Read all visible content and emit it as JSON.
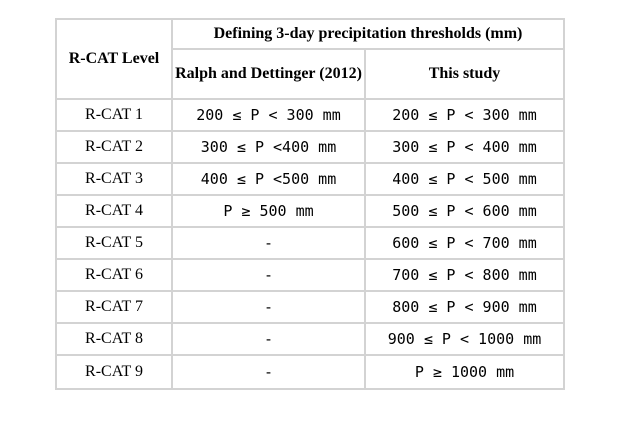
{
  "table": {
    "col_level_header": "R-CAT Level",
    "group_header": "Defining 3-day precipitation thresholds (mm)",
    "col_ralph_header": "Ralph and Dettinger (2012)",
    "col_study_header": "This study",
    "rows": [
      {
        "level": "R-CAT 1",
        "ralph": "200 ≤ P < 300 mm",
        "study": "200 ≤ P < 300 mm"
      },
      {
        "level": "R-CAT 2",
        "ralph": "300 ≤ P <400 mm",
        "study": "300 ≤ P < 400 mm"
      },
      {
        "level": "R-CAT 3",
        "ralph": "400 ≤ P <500 mm",
        "study": "400 ≤ P < 500 mm"
      },
      {
        "level": "R-CAT 4",
        "ralph": "P ≥ 500 mm",
        "study": "500 ≤ P < 600 mm"
      },
      {
        "level": "R-CAT 5",
        "ralph": "-",
        "study": "600 ≤ P < 700 mm"
      },
      {
        "level": "R-CAT 6",
        "ralph": "-",
        "study": "700 ≤ P < 800 mm"
      },
      {
        "level": "R-CAT 7",
        "ralph": "-",
        "study": "800 ≤ P < 900 mm"
      },
      {
        "level": "R-CAT 8",
        "ralph": "-",
        "study": "900 ≤ P < 1000 mm"
      },
      {
        "level": "R-CAT 9",
        "ralph": "-",
        "study": "P ≥ 1000 mm"
      }
    ]
  }
}
